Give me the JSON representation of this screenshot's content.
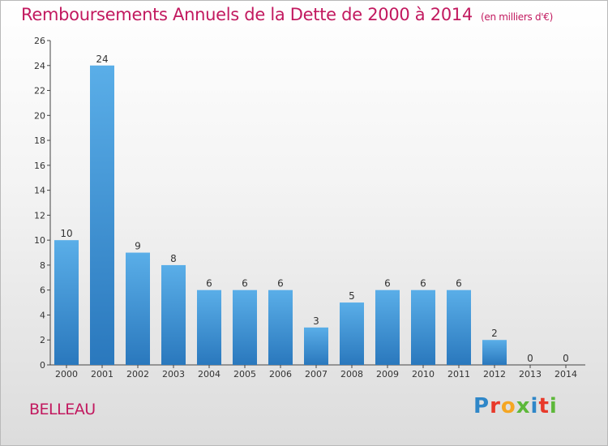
{
  "header": {
    "title": "Remboursements Annuels de la Dette de 2000 à 2014",
    "unit": "(en milliers d'€)"
  },
  "footer": {
    "commune": "BELLEAU",
    "logo": "Proxiti",
    "logo_colors": [
      "#2f87c8",
      "#e8392a",
      "#f5a623",
      "#5db83a",
      "#2f87c8",
      "#e8392a",
      "#5db83a"
    ]
  },
  "colors": {
    "title": "#c2195f",
    "bar_top": "#5aaee8",
    "bar_bottom": "#2a78bd"
  },
  "chart_data": {
    "type": "bar",
    "title": "Remboursements Annuels de la Dette de 2000 à 2014",
    "subtitle": "(en milliers d'€)",
    "categories": [
      "2000",
      "2001",
      "2002",
      "2003",
      "2004",
      "2005",
      "2006",
      "2007",
      "2008",
      "2009",
      "2010",
      "2011",
      "2012",
      "2013",
      "2014"
    ],
    "values": [
      10,
      24,
      9,
      8,
      6,
      6,
      6,
      3,
      5,
      6,
      6,
      6,
      2,
      0,
      0
    ],
    "ylim": [
      0,
      26
    ],
    "yticks": [
      0,
      2,
      4,
      6,
      8,
      10,
      12,
      14,
      16,
      18,
      20,
      22,
      24,
      26
    ],
    "grid": false,
    "data_labels": true
  }
}
